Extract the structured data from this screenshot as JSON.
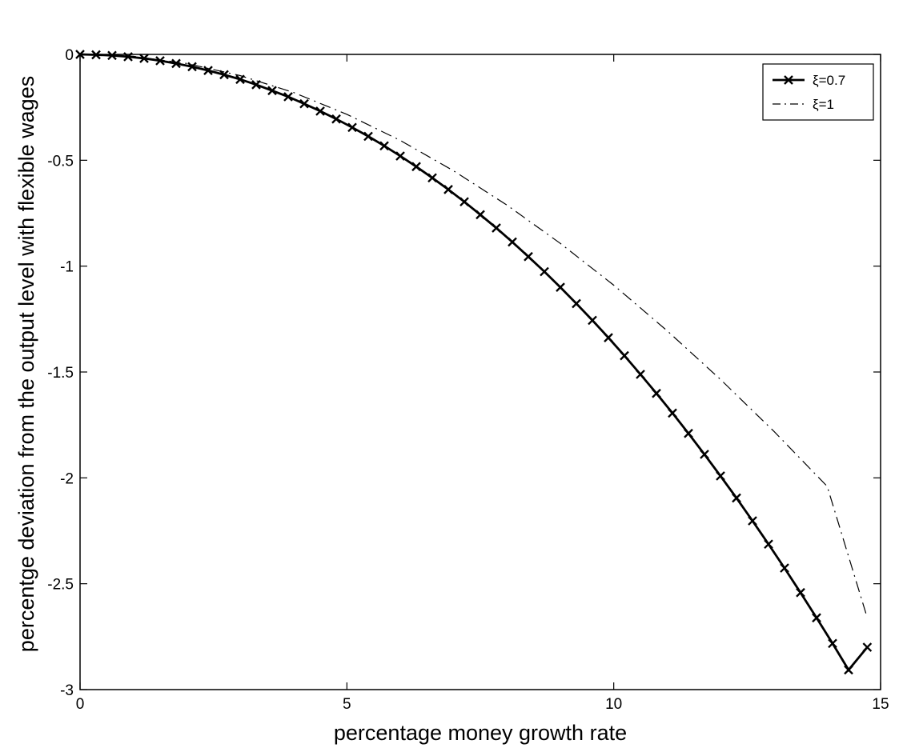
{
  "chart_data": {
    "type": "line",
    "title": "",
    "xlabel": "percentage money growth rate",
    "ylabel": "percentge deviation from the output level with flexible wages",
    "xlim": [
      0,
      15
    ],
    "ylim": [
      -3,
      0
    ],
    "xticks": [
      0,
      5,
      10,
      15
    ],
    "yticks": [
      0,
      -0.5,
      -1,
      -1.5,
      -2,
      -2.5,
      -3
    ],
    "xtick_labels": [
      "0",
      "5",
      "10",
      "15"
    ],
    "ytick_labels": [
      "0",
      "-0.5",
      "-1",
      "-1.5",
      "-2",
      "-2.5",
      "-3"
    ],
    "grid": false,
    "legend_position": "top-right",
    "series": [
      {
        "name": "ξ=0.7",
        "style": "solid-with-x-markers",
        "color": "#000000",
        "x": [
          0,
          0.3,
          0.6,
          0.9,
          1.2,
          1.5,
          1.8,
          2.1,
          2.4,
          2.7,
          3.0,
          3.3,
          3.6,
          3.9,
          4.2,
          4.5,
          4.8,
          5.1,
          5.4,
          5.7,
          6.0,
          6.3,
          6.6,
          6.9,
          7.2,
          7.5,
          7.8,
          8.1,
          8.4,
          8.7,
          9.0,
          9.3,
          9.6,
          9.9,
          10.2,
          10.5,
          10.8,
          11.1,
          11.4,
          11.7,
          12.0,
          12.3,
          12.6,
          12.9,
          13.2,
          13.5,
          13.8,
          14.1,
          14.4,
          14.75
        ],
        "y": [
          0,
          -0.002,
          -0.005,
          -0.011,
          -0.019,
          -0.03,
          -0.043,
          -0.058,
          -0.076,
          -0.096,
          -0.118,
          -0.143,
          -0.171,
          -0.2,
          -0.233,
          -0.268,
          -0.305,
          -0.345,
          -0.387,
          -0.432,
          -0.48,
          -0.53,
          -0.583,
          -0.638,
          -0.696,
          -0.757,
          -0.82,
          -0.886,
          -0.955,
          -1.026,
          -1.1,
          -1.177,
          -1.256,
          -1.338,
          -1.423,
          -1.511,
          -1.601,
          -1.694,
          -1.79,
          -1.889,
          -1.991,
          -2.095,
          -2.203,
          -2.313,
          -2.426,
          -2.542,
          -2.661,
          -2.782,
          -2.907,
          -2.8
        ]
      },
      {
        "name": "ξ=1",
        "style": "dash-dot",
        "color": "#000000",
        "x": [
          0,
          1,
          2,
          3,
          4,
          5,
          6,
          7,
          8,
          9,
          10,
          11,
          12,
          13,
          14,
          14.75
        ],
        "y": [
          0,
          -0.009,
          -0.043,
          -0.1,
          -0.18,
          -0.283,
          -0.406,
          -0.55,
          -0.712,
          -0.893,
          -1.09,
          -1.305,
          -1.535,
          -1.78,
          -2.04,
          -2.66
        ]
      }
    ]
  }
}
